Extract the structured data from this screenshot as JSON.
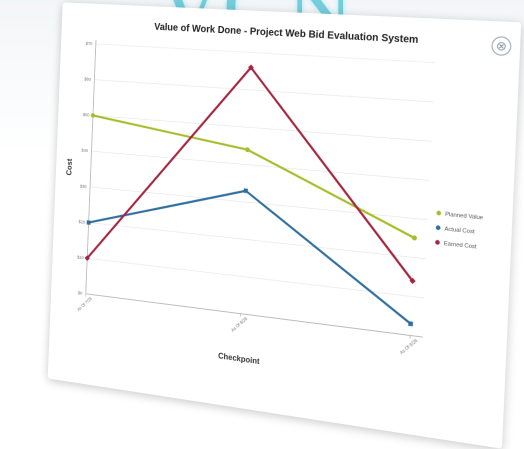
{
  "watermark_text": "VCN",
  "close_glyph": "⊗",
  "colors": {
    "planned": "#a4be2b",
    "actual": "#2f6f9e",
    "earned": "#a3253f",
    "grid": "#e4e4e4",
    "axis": "#aaaaaa"
  },
  "chart_data": {
    "type": "line",
    "title": "Value of Work Done - Project Web Bid Evaluation System",
    "xlabel": "Checkpoint",
    "ylabel": "Cost",
    "categories": [
      "As Of 7/26",
      "As Of 8/26",
      "As Of 9/26"
    ],
    "y_ticks": [
      "$0",
      "$10",
      "$20",
      "$30",
      "$40",
      "$50",
      "$60",
      "$70"
    ],
    "ylim": [
      0,
      70
    ],
    "grid": true,
    "legend_position": "right",
    "series": [
      {
        "name": "Planned Value",
        "values": [
          50,
          44,
          25
        ],
        "marker": "circle"
      },
      {
        "name": "Actual Cost",
        "values": [
          20,
          33,
          3
        ],
        "marker": "square"
      },
      {
        "name": "Earned Cost",
        "values": [
          10,
          66,
          14
        ],
        "marker": "diamond"
      }
    ]
  }
}
